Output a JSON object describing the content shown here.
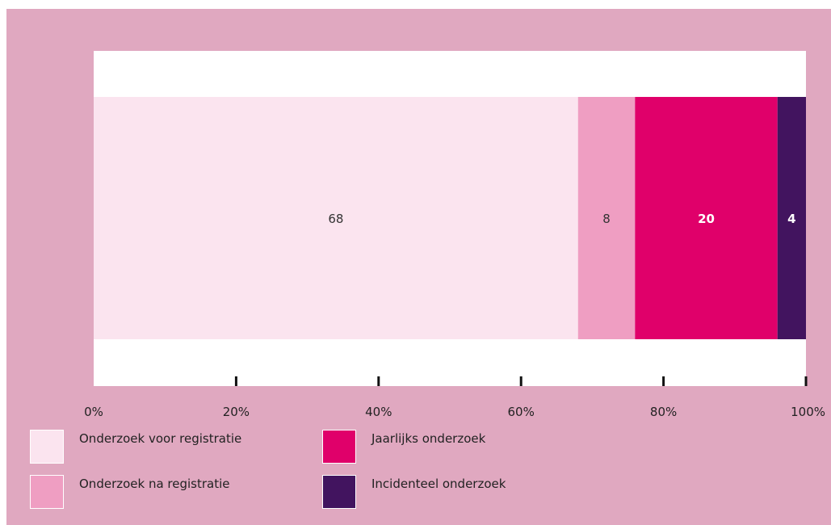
{
  "colors": {
    "background": "#e0a8c0",
    "plot_area": "#ffffff",
    "axis": "#111111"
  },
  "chart_data": {
    "type": "bar",
    "orientation": "horizontal",
    "stacked": true,
    "categories": [
      ""
    ],
    "series": [
      {
        "name": "Onderzoek voor registratie",
        "values": [
          68
        ],
        "color": "#fbe4ef",
        "label_color": "#333333"
      },
      {
        "name": "Onderzoek na registratie",
        "values": [
          8
        ],
        "color": "#ef9ec2",
        "label_color": "#333333"
      },
      {
        "name": "Jaarlijks onderzoek",
        "values": [
          20
        ],
        "color": "#e0006a",
        "label_color": "#ffffff"
      },
      {
        "name": "Incidenteel onderzoek",
        "values": [
          4
        ],
        "color": "#42145f",
        "label_color": "#ffffff"
      }
    ],
    "data_labels": [
      "68",
      "8",
      "20",
      "4"
    ],
    "xlim": [
      0,
      100
    ],
    "x_ticks": [
      0,
      20,
      40,
      60,
      80,
      100
    ],
    "x_tick_labels": [
      "0%",
      "20%",
      "40%",
      "60%",
      "80%",
      "100%"
    ],
    "grid": false,
    "legend": {
      "placement": "bottom",
      "columns": 2,
      "order": [
        0,
        1,
        2,
        3
      ]
    }
  }
}
